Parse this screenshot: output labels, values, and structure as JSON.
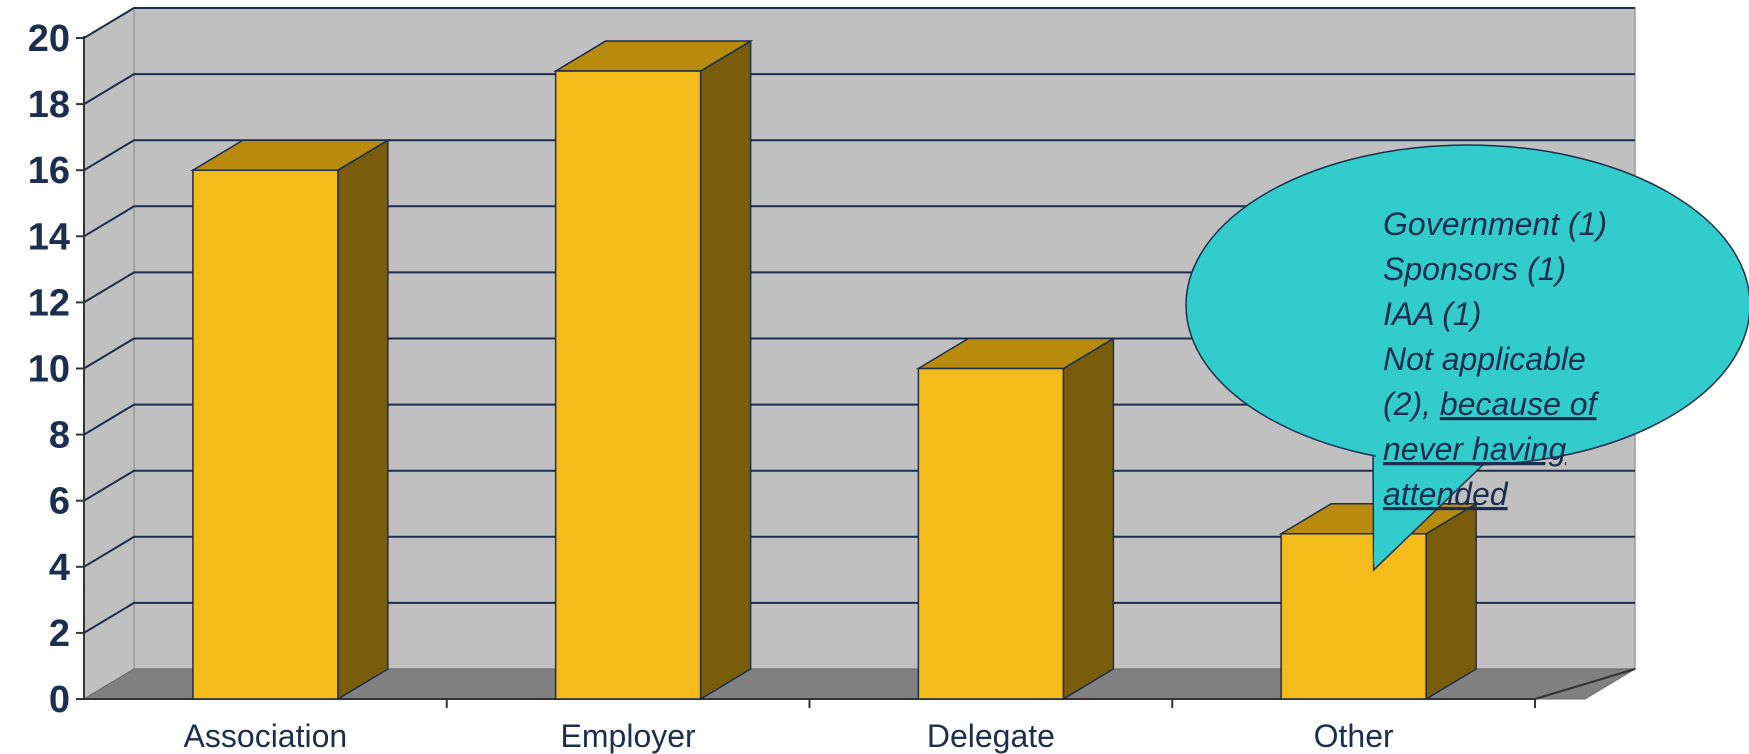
{
  "chart_data": {
    "type": "bar",
    "categories": [
      "Association",
      "Employer",
      "Delegate",
      "Other"
    ],
    "values": [
      16,
      19,
      10,
      5
    ],
    "ylim": [
      0,
      20
    ],
    "yticks": [
      0,
      2,
      4,
      6,
      8,
      10,
      12,
      14,
      16,
      18,
      20
    ],
    "grid": true,
    "style": "3d-column",
    "annotation": {
      "lines": [
        {
          "text": "Government (1)"
        },
        {
          "text": "Sponsors (1)"
        },
        {
          "text": "IAA (1)"
        },
        {
          "text": "Not applicable"
        },
        {
          "text": "(2), ",
          "underlined_tail": "because of"
        },
        {
          "text": "",
          "underlined_tail": "never having"
        },
        {
          "text": "",
          "underlined_tail": "attended"
        }
      ],
      "points_to": "Other"
    }
  },
  "colors": {
    "bar_front": "#f5bb1a",
    "bar_top": "#b88a0e",
    "bar_side": "#7a5d0b",
    "wall": "#c0c0c0",
    "floor": "#808080",
    "grid": "#1b2e4f",
    "text": "#1b2e4f",
    "callout_fill": "#33cccc"
  }
}
